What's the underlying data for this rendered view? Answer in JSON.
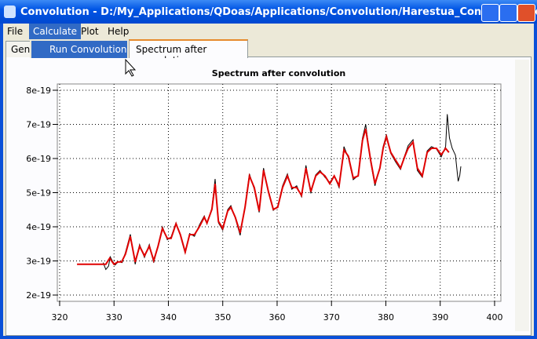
{
  "window": {
    "title": "Convolution - D:/My_Applications/QDoas/Applications/Convolution/Harestua_Convolution.xml"
  },
  "menu": [
    "File",
    "Calculate",
    "Plot",
    "Help"
  ],
  "dropdown": [
    "Run Convolution"
  ],
  "tabs": [
    "Gen",
    "Spectrum after convolution"
  ],
  "chart_data": {
    "type": "line",
    "title": "Spectrum after convolution",
    "xlim": [
      319.57,
      401.16
    ],
    "xticks": [
      320,
      330,
      340,
      350,
      360,
      370,
      380,
      390,
      400
    ],
    "ylim": [
      1.816e-19,
      8.184e-19
    ],
    "yticks": [
      2e-19,
      3e-19,
      4e-19,
      5e-19,
      6e-19,
      7e-19,
      8e-19
    ],
    "grid": true,
    "series": [
      {
        "color": "#000000",
        "x": [
          328,
          328.5,
          329,
          329.3,
          329.7,
          330.2,
          330.8,
          331.5,
          332.1,
          333,
          333.9,
          334.7,
          335.6,
          336.5,
          337.3,
          338.1,
          338.9,
          339.8,
          340.5,
          341.4,
          342.2,
          343.1,
          343.9,
          344.8,
          345.7,
          346.6,
          347.1,
          348,
          348.6,
          349.2,
          350,
          350.9,
          351.5,
          352.3,
          353.2,
          354.1,
          354.9,
          355.8,
          356.7,
          357.5,
          358.4,
          359.3,
          360.1,
          361,
          361.9,
          362.7,
          363.6,
          364.5,
          365.3,
          366.2,
          367.1,
          367.9,
          368.8,
          369.7,
          370.5,
          371.4,
          372.3,
          373.1,
          374,
          374.9,
          375.7,
          376.3,
          377.2,
          378,
          378.9,
          379.5,
          380.1,
          380.9,
          381.8,
          382.7,
          383.5,
          384.1,
          385,
          385.8,
          386.7,
          387.6,
          388.4,
          389.3,
          390.2,
          391,
          391.3,
          391.7,
          392.2,
          392.8,
          393.3,
          393.6,
          393.8
        ],
        "values": [
          2.95e-19,
          2.75e-19,
          2.85e-19,
          3.12e-19,
          3e-19,
          2.88e-19,
          2.98e-19,
          2.95e-19,
          3.25e-19,
          3.78e-19,
          2.9e-19,
          3.48e-19,
          3.1e-19,
          3.48e-19,
          2.95e-19,
          3.45e-19,
          4e-19,
          3.62e-19,
          3.7e-19,
          4.12e-19,
          3.74e-19,
          3.22e-19,
          3.8e-19,
          3.72e-19,
          4.05e-19,
          4.32e-19,
          4.08e-19,
          4.55e-19,
          5.4e-19,
          4.12e-19,
          3.9e-19,
          4.5e-19,
          4.62e-19,
          4.25e-19,
          3.75e-19,
          4.6e-19,
          5.55e-19,
          5.1e-19,
          4.42e-19,
          5.72e-19,
          5e-19,
          4.48e-19,
          4.6e-19,
          5.2e-19,
          5.55e-19,
          5.1e-19,
          5.2e-19,
          4.88e-19,
          5.8e-19,
          4.98e-19,
          5.52e-19,
          5.65e-19,
          5.45e-19,
          5.3e-19,
          5.5e-19,
          5.15e-19,
          6.35e-19,
          6.02e-19,
          5.38e-19,
          5.5e-19,
          6.6e-19,
          7e-19,
          5.9e-19,
          5.2e-19,
          5.75e-19,
          6.35e-19,
          6.7e-19,
          6.15e-19,
          5.9e-19,
          5.68e-19,
          6.1e-19,
          6.38e-19,
          6.55e-19,
          5.65e-19,
          5.45e-19,
          6.22e-19,
          6.35e-19,
          6.28e-19,
          6.05e-19,
          6.35e-19,
          7.3e-19,
          6.6e-19,
          6.3e-19,
          6.1e-19,
          5.33e-19,
          5.5e-19,
          5.77e-19
        ]
      },
      {
        "color": "#e00000",
        "x": [
          323.2,
          327.8,
          328.5,
          329.2,
          330,
          330.7,
          331.4,
          332.1,
          333,
          333.9,
          334.7,
          335.6,
          336.5,
          337.3,
          338.1,
          338.9,
          339.8,
          340.5,
          341.4,
          342.2,
          343.1,
          343.9,
          344.8,
          345.7,
          346.6,
          347.1,
          348,
          348.6,
          349.2,
          350,
          350.9,
          351.5,
          352.3,
          353.2,
          354.1,
          354.9,
          355.8,
          356.7,
          357.5,
          358.4,
          359.3,
          360.1,
          361,
          361.9,
          362.7,
          363.6,
          364.5,
          365.3,
          366.2,
          367.1,
          367.9,
          368.8,
          369.7,
          370.5,
          371.4,
          372.3,
          373.1,
          374,
          374.9,
          375.7,
          376.3,
          377.2,
          378,
          378.9,
          379.5,
          380.1,
          380.9,
          381.8,
          382.7,
          383.5,
          384.1,
          385,
          385.8,
          386.7,
          387.6,
          388.4,
          389.3,
          390.2,
          391,
          391.6
        ],
        "values": [
          2.9e-19,
          2.9e-19,
          2.9e-19,
          3.08e-19,
          2.9e-19,
          2.97e-19,
          2.97e-19,
          3.2e-19,
          3.72e-19,
          2.97e-19,
          3.43e-19,
          3.15e-19,
          3.43e-19,
          3.01e-19,
          3.43e-19,
          3.95e-19,
          3.66e-19,
          3.66e-19,
          4.09e-19,
          3.77e-19,
          3.26e-19,
          3.77e-19,
          3.77e-19,
          4e-19,
          4.28e-19,
          4.11e-19,
          4.51e-19,
          5.26e-19,
          4.16e-19,
          3.95e-19,
          4.46e-19,
          4.57e-19,
          4.28e-19,
          3.82e-19,
          4.57e-19,
          5.49e-19,
          5.15e-19,
          4.46e-19,
          5.66e-19,
          5.03e-19,
          4.51e-19,
          4.57e-19,
          5.15e-19,
          5.49e-19,
          5.15e-19,
          5.15e-19,
          4.92e-19,
          5.72e-19,
          5.03e-19,
          5.49e-19,
          5.61e-19,
          5.49e-19,
          5.26e-19,
          5.49e-19,
          5.2e-19,
          6.25e-19,
          6.07e-19,
          5.43e-19,
          5.49e-19,
          6.53e-19,
          6.87e-19,
          5.95e-19,
          5.26e-19,
          5.72e-19,
          6.3e-19,
          6.64e-19,
          6.18e-19,
          5.95e-19,
          5.72e-19,
          6.07e-19,
          6.3e-19,
          6.48e-19,
          5.72e-19,
          5.49e-19,
          6.18e-19,
          6.3e-19,
          6.3e-19,
          6.11e-19,
          6.3e-19,
          6.18e-19
        ]
      }
    ]
  }
}
